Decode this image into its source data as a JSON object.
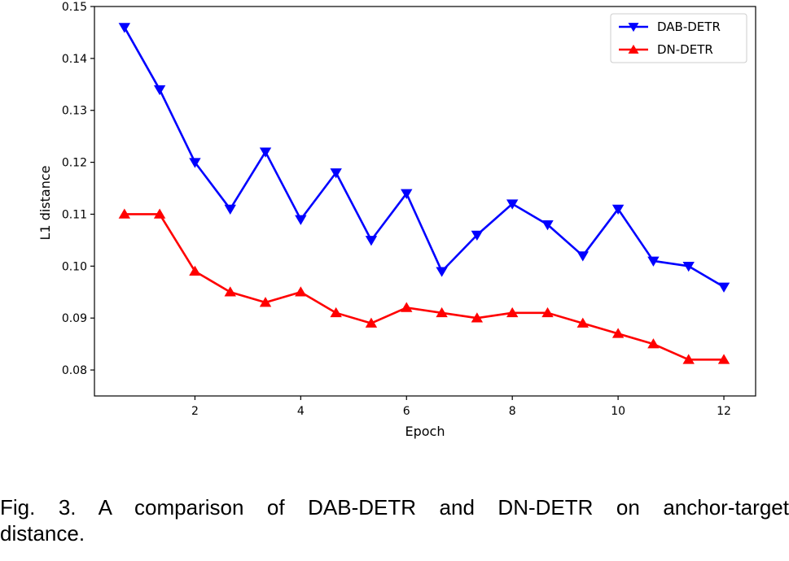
{
  "chart_data": {
    "type": "line",
    "xlabel": "Epoch",
    "ylabel": "L1 distance",
    "xlim": [
      0.1,
      12.6
    ],
    "ylim": [
      0.075,
      0.15
    ],
    "x_ticks": [
      2,
      4,
      6,
      8,
      10,
      12
    ],
    "y_ticks": [
      0.08,
      0.09,
      0.1,
      0.11,
      0.12,
      0.13,
      0.14,
      0.15
    ],
    "y_tick_labels": [
      "0.08",
      "0.09",
      "0.10",
      "0.11",
      "0.12",
      "0.13",
      "0.14",
      "0.15"
    ],
    "grid": false,
    "legend_position": "top-right",
    "x": [
      0.667,
      1.333,
      2.0,
      2.667,
      3.333,
      4.0,
      4.667,
      5.333,
      6.0,
      6.667,
      7.333,
      8.0,
      8.667,
      9.333,
      10.0,
      10.667,
      11.333,
      12.0
    ],
    "series": [
      {
        "name": "DAB-DETR",
        "color": "#0000ff",
        "marker": "triangle-down",
        "values": [
          0.146,
          0.134,
          0.12,
          0.111,
          0.122,
          0.109,
          0.118,
          0.105,
          0.114,
          0.099,
          0.106,
          0.112,
          0.108,
          0.102,
          0.111,
          0.101,
          0.1,
          0.096
        ]
      },
      {
        "name": "DN-DETR",
        "color": "#ff0000",
        "marker": "triangle-up",
        "values": [
          0.11,
          0.11,
          0.099,
          0.095,
          0.093,
          0.095,
          0.091,
          0.089,
          0.092,
          0.091,
          0.09,
          0.091,
          0.091,
          0.089,
          0.087,
          0.085,
          0.082,
          0.082
        ]
      }
    ]
  },
  "caption": {
    "line1": "Fig. 3. A comparison of DAB-DETR and DN-DETR on anchor-target",
    "line2": "distance."
  }
}
